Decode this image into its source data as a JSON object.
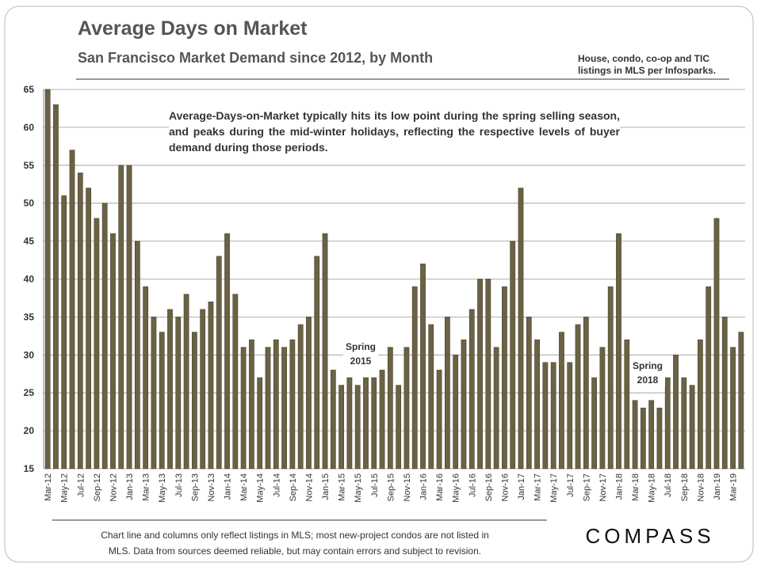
{
  "header": {
    "title": "Average Days on Market",
    "subtitle": "San Francisco Market Demand since 2012, by Month",
    "source_note": [
      "House, condo, co-op and TIC",
      "listings in MLS per Infosparks."
    ]
  },
  "chart_data": {
    "type": "bar",
    "color": "#6b6245",
    "grid": true,
    "categories": [
      "Mar-12",
      null,
      "May-12",
      null,
      "Jul-12",
      null,
      "Sep-12",
      null,
      "Nov-12",
      null,
      "Jan-13",
      null,
      "Mar-13",
      null,
      "May-13",
      null,
      "Jul-13",
      null,
      "Sep-13",
      null,
      "Nov-13",
      null,
      "Jan-14",
      null,
      "Mar-14",
      null,
      "May-14",
      null,
      "Jul-14",
      null,
      "Sep-14",
      null,
      "Nov-14",
      null,
      "Jan-15",
      null,
      "Mar-15",
      null,
      "May-15",
      null,
      "Jul-15",
      null,
      "Sep-15",
      null,
      "Nov-15",
      null,
      "Jan-16",
      null,
      "Mar-16",
      null,
      "May-16",
      null,
      "Jul-16",
      null,
      "Sep-16",
      null,
      "Nov-16",
      null,
      "Jan-17",
      null,
      "Mar-17",
      null,
      "May-17",
      null,
      "Jul-17",
      null,
      "Sep-17",
      null,
      "Nov-17",
      null,
      "Jan-18",
      null,
      "Mar-18",
      null,
      "May-18",
      null,
      "Jul-18",
      null,
      "Sep-18",
      null,
      "Nov-18",
      null,
      "Jan-19",
      null,
      "Mar-19",
      null
    ],
    "values": [
      65,
      63,
      51,
      57,
      54,
      52,
      48,
      50,
      46,
      55,
      55,
      45,
      39,
      35,
      33,
      36,
      35,
      38,
      33,
      36,
      37,
      43,
      46,
      38,
      31,
      32,
      27,
      31,
      32,
      31,
      32,
      34,
      35,
      43,
      46,
      28,
      26,
      27,
      26,
      27,
      27,
      28,
      31,
      26,
      31,
      39,
      42,
      34,
      28,
      35,
      30,
      32,
      36,
      40,
      40,
      31,
      39,
      45,
      52,
      35,
      32,
      29,
      29,
      33,
      29,
      34,
      35,
      27,
      31,
      39,
      46,
      32,
      24,
      23,
      24,
      23,
      27,
      30,
      27,
      26,
      32,
      39,
      48,
      35,
      31,
      33
    ],
    "ylim": [
      15,
      65
    ],
    "yticks": [
      15,
      20,
      25,
      30,
      35,
      40,
      45,
      50,
      55,
      60,
      65
    ],
    "annotations": [
      "Average-Days-on-Market typically hits its low point during the spring selling season, and peaks during the mid-winter holidays, reflecting the respective levels of buyer demand during those periods.",
      [
        "Spring",
        "2015"
      ],
      [
        "Spring",
        "2018"
      ]
    ]
  },
  "footer": {
    "note": [
      "Chart line and columns only reflect listings in MLS; most new-project condos are not listed in",
      "MLS. Data from sources  deemed reliable, but may contain errors and subject to revision."
    ],
    "logo": "COMPASS"
  }
}
